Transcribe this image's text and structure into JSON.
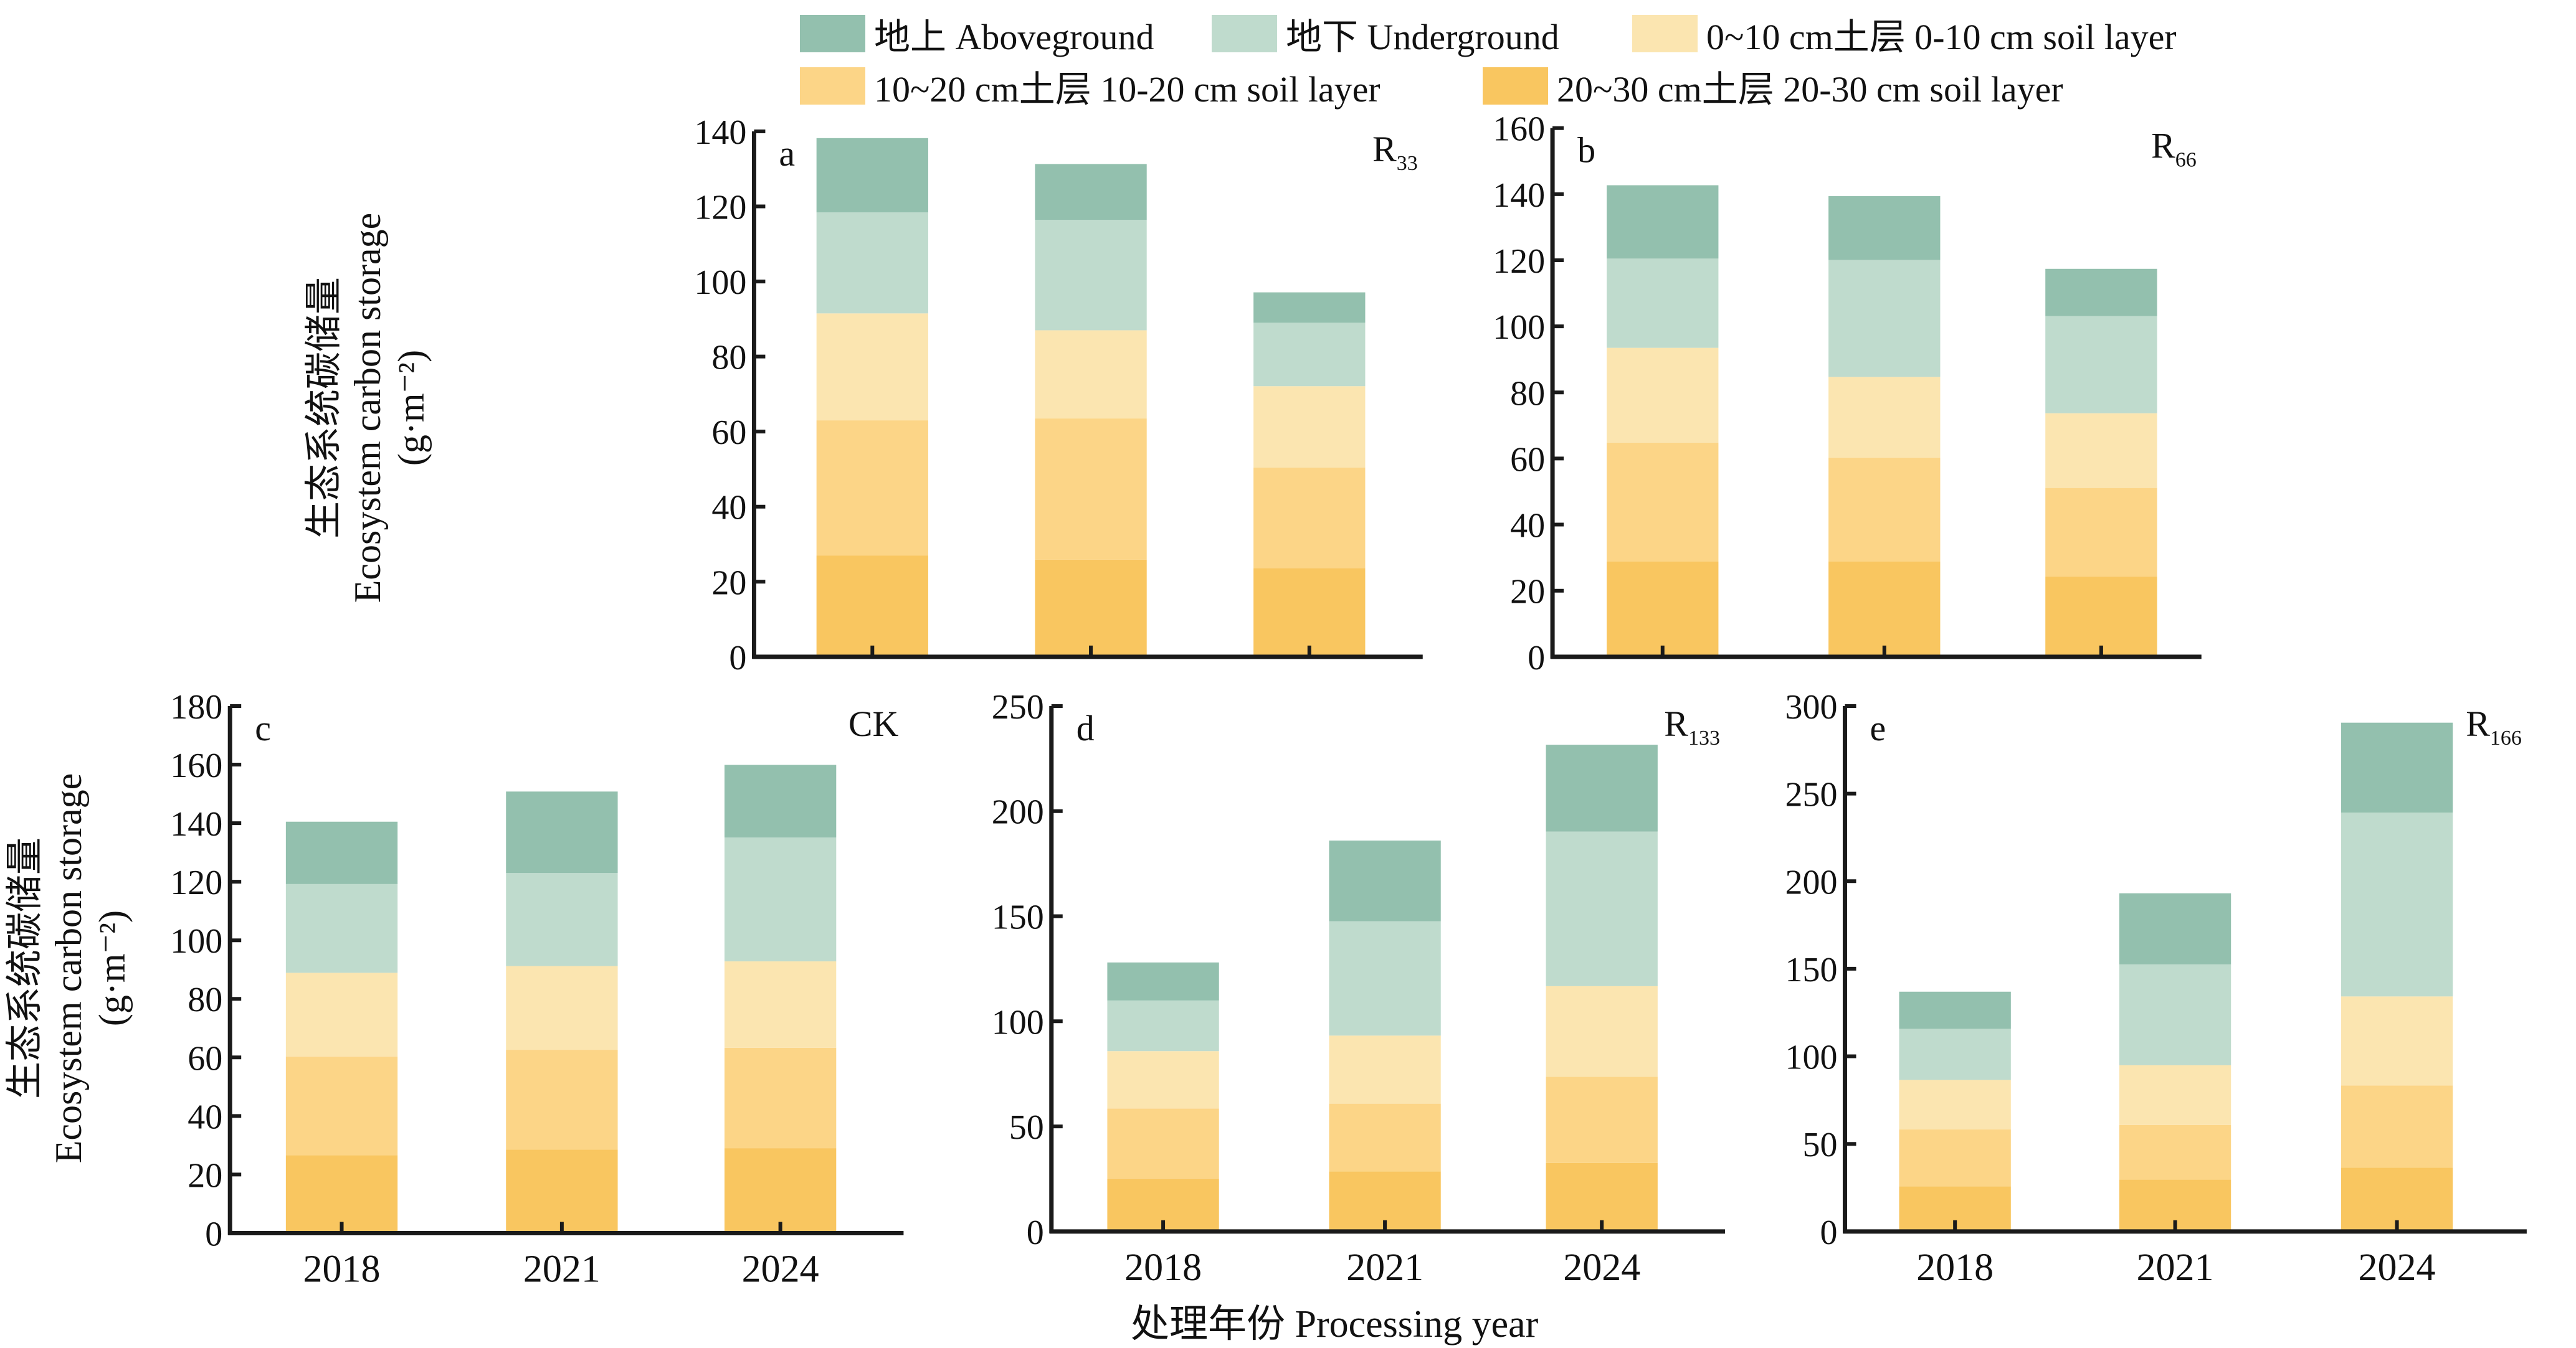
{
  "colors": {
    "aboveground": "#93c0ae",
    "underground": "#bfdbcd",
    "soil_0_10": "#fbe5b0",
    "soil_10_20": "#fcd587",
    "soil_20_30": "#f9c660",
    "axis": "#1a1a1a"
  },
  "legend": [
    {
      "key": "aboveground",
      "label": "地上 Aboveground"
    },
    {
      "key": "underground",
      "label": "地下 Underground"
    },
    {
      "key": "soil_0_10",
      "label": "0~10 cm土层 0-10 cm soil layer"
    },
    {
      "key": "soil_10_20",
      "label": "10~20 cm土层 10-20 cm soil layer"
    },
    {
      "key": "soil_20_30",
      "label": "20~30 cm土层 20-30 cm soil layer"
    }
  ],
  "ylabel": {
    "zh": "生态系统碳储量",
    "en": "Ecosystem carbon storage",
    "unit": "(g·m⁻²)"
  },
  "xlabel": "处理年份 Processing year",
  "chart_data": [
    {
      "type": "bar",
      "stacked": true,
      "panel": "a",
      "treatment": "R",
      "treatment_sub": "33",
      "categories": [
        "2018",
        "2021",
        "2024"
      ],
      "show_xticklabels": false,
      "ylim": [
        0,
        140
      ],
      "yticks": [
        0,
        20,
        40,
        60,
        80,
        100,
        120,
        140
      ],
      "series": [
        {
          "name": "20~30 cm土层 20-30 cm soil layer",
          "key": "soil_20_30",
          "values": [
            27.0,
            25.9,
            23.6
          ]
        },
        {
          "name": "10~20 cm土层 10-20 cm soil layer",
          "key": "soil_10_20",
          "values": [
            36.0,
            37.6,
            26.8
          ]
        },
        {
          "name": "0~10 cm土层 0-10 cm soil layer",
          "key": "soil_0_10",
          "values": [
            28.5,
            23.5,
            21.7
          ]
        },
        {
          "name": "地下 Underground",
          "key": "underground",
          "values": [
            26.9,
            29.4,
            16.9
          ]
        },
        {
          "name": "地上 Aboveground",
          "key": "aboveground",
          "values": [
            19.8,
            14.9,
            8.1
          ]
        }
      ],
      "totals": [
        138.2,
        131.3,
        97.1
      ]
    },
    {
      "type": "bar",
      "stacked": true,
      "panel": "b",
      "treatment": "R",
      "treatment_sub": "66",
      "categories": [
        "2018",
        "2021",
        "2024"
      ],
      "show_xticklabels": false,
      "ylim": [
        0,
        160
      ],
      "yticks": [
        0,
        20,
        40,
        60,
        80,
        100,
        120,
        140,
        160
      ],
      "series": [
        {
          "name": "20~30 cm土层 20-30 cm soil layer",
          "key": "soil_20_30",
          "values": [
            28.8,
            28.8,
            24.3
          ]
        },
        {
          "name": "10~20 cm土层 10-20 cm soil layer",
          "key": "soil_10_20",
          "values": [
            36.0,
            31.5,
            26.8
          ]
        },
        {
          "name": "0~10 cm土层 0-10 cm soil layer",
          "key": "soil_0_10",
          "values": [
            28.7,
            24.4,
            22.6
          ]
        },
        {
          "name": "地下 Underground",
          "key": "underground",
          "values": [
            27.0,
            35.4,
            29.4
          ]
        },
        {
          "name": "地上 Aboveground",
          "key": "aboveground",
          "values": [
            22.2,
            19.3,
            14.3
          ]
        }
      ],
      "totals": [
        142.7,
        139.4,
        117.4
      ]
    },
    {
      "type": "bar",
      "stacked": true,
      "panel": "c",
      "treatment": "CK",
      "treatment_sub": "",
      "categories": [
        "2018",
        "2021",
        "2024"
      ],
      "show_xticklabels": true,
      "ylim": [
        0,
        180
      ],
      "yticks": [
        0,
        20,
        40,
        60,
        80,
        100,
        120,
        140,
        160,
        180
      ],
      "series": [
        {
          "name": "20~30 cm土层 20-30 cm soil layer",
          "key": "soil_20_30",
          "values": [
            26.6,
            28.5,
            29.0
          ]
        },
        {
          "name": "10~20 cm土层 10-20 cm soil layer",
          "key": "soil_10_20",
          "values": [
            33.7,
            34.1,
            34.3
          ]
        },
        {
          "name": "0~10 cm土层 0-10 cm soil layer",
          "key": "soil_0_10",
          "values": [
            28.6,
            28.6,
            29.5
          ]
        },
        {
          "name": "地下 Underground",
          "key": "underground",
          "values": [
            30.3,
            31.8,
            42.3
          ]
        },
        {
          "name": "地上 Aboveground",
          "key": "aboveground",
          "values": [
            21.3,
            27.8,
            24.8
          ]
        }
      ],
      "totals": [
        140.5,
        150.8,
        159.9
      ]
    },
    {
      "type": "bar",
      "stacked": true,
      "panel": "d",
      "treatment": "R",
      "treatment_sub": "133",
      "categories": [
        "2018",
        "2021",
        "2024"
      ],
      "show_xticklabels": true,
      "ylim": [
        0,
        250
      ],
      "yticks": [
        0,
        50,
        100,
        150,
        200,
        250
      ],
      "series": [
        {
          "name": "20~30 cm土层 20-30 cm soil layer",
          "key": "soil_20_30",
          "values": [
            25.2,
            28.6,
            32.6
          ]
        },
        {
          "name": "10~20 cm土层 10-20 cm soil layer",
          "key": "soil_10_20",
          "values": [
            33.3,
            32.2,
            41.0
          ]
        },
        {
          "name": "0~10 cm土层 0-10 cm soil layer",
          "key": "soil_0_10",
          "values": [
            27.3,
            32.4,
            43.1
          ]
        },
        {
          "name": "地下 Underground",
          "key": "underground",
          "values": [
            24.1,
            54.4,
            73.6
          ]
        },
        {
          "name": "地上 Aboveground",
          "key": "aboveground",
          "values": [
            18.1,
            38.4,
            41.3
          ]
        }
      ],
      "totals": [
        128.0,
        186.0,
        231.6
      ]
    },
    {
      "type": "bar",
      "stacked": true,
      "panel": "e",
      "treatment": "R",
      "treatment_sub": "166",
      "categories": [
        "2018",
        "2021",
        "2024"
      ],
      "show_xticklabels": true,
      "ylim": [
        0,
        300
      ],
      "yticks": [
        0,
        50,
        100,
        150,
        200,
        250,
        300
      ],
      "series": [
        {
          "name": "20~30 cm土层 20-30 cm soil layer",
          "key": "soil_20_30",
          "values": [
            25.8,
            29.6,
            36.4
          ]
        },
        {
          "name": "10~20 cm土层 10-20 cm soil layer",
          "key": "soil_10_20",
          "values": [
            32.5,
            31.2,
            47.0
          ]
        },
        {
          "name": "0~10 cm土层 0-10 cm soil layer",
          "key": "soil_0_10",
          "values": [
            28.2,
            34.1,
            50.8
          ]
        },
        {
          "name": "地下 Underground",
          "key": "underground",
          "values": [
            29.2,
            57.6,
            105.0
          ]
        },
        {
          "name": "地上 Aboveground",
          "key": "aboveground",
          "values": [
            21.2,
            40.6,
            51.3
          ]
        }
      ],
      "totals": [
        136.9,
        193.1,
        290.5
      ]
    }
  ]
}
